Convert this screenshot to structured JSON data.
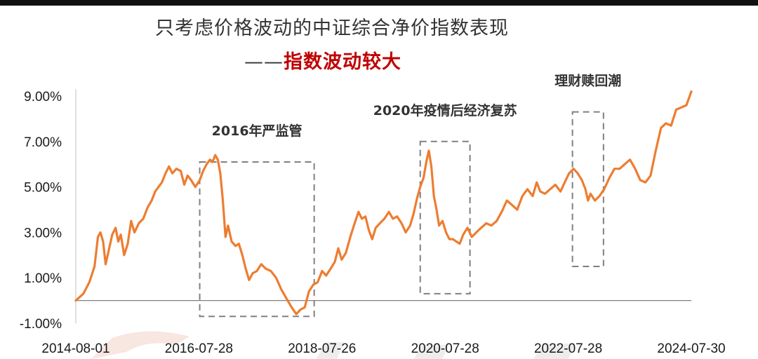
{
  "title": "只考虑价格波动的中证综合净价指数表现",
  "subtitle_dash": "——",
  "subtitle_red": "指数波动较大",
  "colors": {
    "line": "#ed7d31",
    "box": "#808080",
    "subtitle": "#c00000",
    "axis": "#808080"
  },
  "chart_data": {
    "type": "line",
    "title": "只考虑价格波动的中证综合净价指数表现",
    "subtitle": "——指数波动较大",
    "xlabel": "",
    "ylabel": "",
    "ylim": [
      -1.0,
      9.0
    ],
    "y_ticks": [
      "9.00%",
      "7.00%",
      "5.00%",
      "3.00%",
      "1.00%",
      "-1.00%"
    ],
    "y_tick_values": [
      9,
      7,
      5,
      3,
      1,
      -1
    ],
    "x_ticks": [
      "2014-08-01",
      "2016-07-28",
      "2018-07-26",
      "2020-07-28",
      "2022-07-28",
      "2024-07-30"
    ],
    "x_range": [
      "2014-08-01",
      "2024-07-30"
    ],
    "grid": false,
    "series": [
      {
        "values": [
          [
            "2014-08-01",
            0.0
          ],
          [
            "2014-09-15",
            0.3
          ],
          [
            "2014-10-20",
            0.8
          ],
          [
            "2014-11-20",
            1.5
          ],
          [
            "2014-12-10",
            2.8
          ],
          [
            "2014-12-25",
            3.0
          ],
          [
            "2015-01-10",
            2.6
          ],
          [
            "2015-01-25",
            1.6
          ],
          [
            "2015-02-15",
            2.3
          ],
          [
            "2015-03-05",
            2.9
          ],
          [
            "2015-03-25",
            3.2
          ],
          [
            "2015-04-10",
            2.6
          ],
          [
            "2015-04-25",
            2.9
          ],
          [
            "2015-05-15",
            2.0
          ],
          [
            "2015-06-05",
            2.5
          ],
          [
            "2015-06-25",
            3.5
          ],
          [
            "2015-07-15",
            3.0
          ],
          [
            "2015-08-10",
            3.4
          ],
          [
            "2015-09-05",
            3.6
          ],
          [
            "2015-10-01",
            4.1
          ],
          [
            "2015-10-25",
            4.4
          ],
          [
            "2015-11-15",
            4.8
          ],
          [
            "2015-12-05",
            5.0
          ],
          [
            "2015-12-25",
            5.2
          ],
          [
            "2016-01-15",
            5.6
          ],
          [
            "2016-02-05",
            5.9
          ],
          [
            "2016-02-25",
            5.6
          ],
          [
            "2016-03-20",
            5.8
          ],
          [
            "2016-04-15",
            5.7
          ],
          [
            "2016-05-05",
            5.1
          ],
          [
            "2016-05-25",
            5.5
          ],
          [
            "2016-06-15",
            5.3
          ],
          [
            "2016-07-10",
            5.0
          ],
          [
            "2016-08-05",
            5.3
          ],
          [
            "2016-08-25",
            5.7
          ],
          [
            "2016-09-15",
            6.0
          ],
          [
            "2016-10-05",
            6.2
          ],
          [
            "2016-10-20",
            6.1
          ],
          [
            "2016-11-05",
            6.4
          ],
          [
            "2016-11-20",
            6.2
          ],
          [
            "2016-12-05",
            5.6
          ],
          [
            "2016-12-20",
            4.4
          ],
          [
            "2017-01-05",
            2.8
          ],
          [
            "2017-01-20",
            3.3
          ],
          [
            "2017-02-10",
            2.6
          ],
          [
            "2017-03-05",
            2.4
          ],
          [
            "2017-03-25",
            2.5
          ],
          [
            "2017-04-15",
            2.0
          ],
          [
            "2017-05-05",
            1.4
          ],
          [
            "2017-05-25",
            0.9
          ],
          [
            "2017-06-15",
            1.2
          ],
          [
            "2017-07-10",
            1.3
          ],
          [
            "2017-08-05",
            1.6
          ],
          [
            "2017-09-01",
            1.4
          ],
          [
            "2017-10-01",
            1.3
          ],
          [
            "2017-11-01",
            1.0
          ],
          [
            "2017-12-01",
            0.5
          ],
          [
            "2018-01-01",
            0.1
          ],
          [
            "2018-02-01",
            -0.3
          ],
          [
            "2018-03-01",
            -0.6
          ],
          [
            "2018-03-25",
            -0.4
          ],
          [
            "2018-04-20",
            -0.3
          ],
          [
            "2018-05-15",
            0.4
          ],
          [
            "2018-06-10",
            0.7
          ],
          [
            "2018-07-05",
            0.8
          ],
          [
            "2018-08-01",
            1.3
          ],
          [
            "2018-08-25",
            1.1
          ],
          [
            "2018-09-20",
            1.4
          ],
          [
            "2018-10-15",
            1.7
          ],
          [
            "2018-11-05",
            2.3
          ],
          [
            "2018-11-25",
            1.8
          ],
          [
            "2018-12-20",
            2.1
          ],
          [
            "2019-01-15",
            2.8
          ],
          [
            "2019-02-10",
            3.4
          ],
          [
            "2019-03-05",
            3.9
          ],
          [
            "2019-03-25",
            3.6
          ],
          [
            "2019-04-15",
            3.7
          ],
          [
            "2019-05-05",
            3.1
          ],
          [
            "2019-05-25",
            2.7
          ],
          [
            "2019-06-15",
            3.2
          ],
          [
            "2019-07-10",
            3.4
          ],
          [
            "2019-08-05",
            3.6
          ],
          [
            "2019-09-01",
            3.9
          ],
          [
            "2019-09-25",
            3.6
          ],
          [
            "2019-10-20",
            3.7
          ],
          [
            "2019-11-15",
            3.4
          ],
          [
            "2019-12-10",
            3.0
          ],
          [
            "2020-01-05",
            3.3
          ],
          [
            "2020-01-25",
            3.8
          ],
          [
            "2020-02-15",
            4.5
          ],
          [
            "2020-03-05",
            5.0
          ],
          [
            "2020-03-25",
            5.4
          ],
          [
            "2020-04-10",
            6.1
          ],
          [
            "2020-04-25",
            6.6
          ],
          [
            "2020-05-10",
            5.9
          ],
          [
            "2020-05-25",
            4.6
          ],
          [
            "2020-06-10",
            4.0
          ],
          [
            "2020-06-25",
            3.3
          ],
          [
            "2020-07-15",
            3.5
          ],
          [
            "2020-08-05",
            3.0
          ],
          [
            "2020-08-25",
            2.7
          ],
          [
            "2020-09-15",
            2.7
          ],
          [
            "2020-10-05",
            2.6
          ],
          [
            "2020-10-25",
            2.5
          ],
          [
            "2020-11-15",
            2.9
          ],
          [
            "2020-12-10",
            3.2
          ],
          [
            "2021-01-05",
            2.8
          ],
          [
            "2021-02-01",
            3.0
          ],
          [
            "2021-03-01",
            3.2
          ],
          [
            "2021-04-01",
            3.4
          ],
          [
            "2021-05-01",
            3.3
          ],
          [
            "2021-06-01",
            3.5
          ],
          [
            "2021-07-01",
            3.9
          ],
          [
            "2021-08-01",
            4.4
          ],
          [
            "2021-09-01",
            4.2
          ],
          [
            "2021-10-01",
            4.0
          ],
          [
            "2021-11-01",
            4.6
          ],
          [
            "2021-12-01",
            4.9
          ],
          [
            "2022-01-01",
            4.6
          ],
          [
            "2022-01-25",
            5.2
          ],
          [
            "2022-02-15",
            4.8
          ],
          [
            "2022-03-15",
            4.7
          ],
          [
            "2022-04-15",
            4.9
          ],
          [
            "2022-05-15",
            5.1
          ],
          [
            "2022-06-15",
            4.8
          ],
          [
            "2022-07-10",
            5.2
          ],
          [
            "2022-08-05",
            5.6
          ],
          [
            "2022-09-01",
            5.8
          ],
          [
            "2022-09-25",
            5.6
          ],
          [
            "2022-10-20",
            5.3
          ],
          [
            "2022-11-10",
            4.9
          ],
          [
            "2022-11-25",
            4.4
          ],
          [
            "2022-12-10",
            4.7
          ],
          [
            "2023-01-05",
            4.4
          ],
          [
            "2023-02-01",
            4.6
          ],
          [
            "2023-03-01",
            4.9
          ],
          [
            "2023-04-01",
            5.4
          ],
          [
            "2023-05-01",
            5.8
          ],
          [
            "2023-06-01",
            5.8
          ],
          [
            "2023-07-01",
            6.0
          ],
          [
            "2023-08-01",
            6.2
          ],
          [
            "2023-09-01",
            5.8
          ],
          [
            "2023-10-01",
            5.3
          ],
          [
            "2023-11-01",
            5.2
          ],
          [
            "2023-12-01",
            5.5
          ],
          [
            "2024-01-01",
            6.6
          ],
          [
            "2024-02-01",
            7.6
          ],
          [
            "2024-03-01",
            7.8
          ],
          [
            "2024-04-01",
            7.7
          ],
          [
            "2024-05-01",
            8.4
          ],
          [
            "2024-06-01",
            8.5
          ],
          [
            "2024-07-01",
            8.6
          ],
          [
            "2024-07-30",
            9.2
          ]
        ]
      }
    ],
    "annotations": [
      {
        "text": "2016年严监管",
        "x_start": "2016-08-05",
        "x_end": "2018-06-15",
        "y_low": -0.7,
        "y_high": 6.1
      },
      {
        "text": "2020年疫情后经济复苏",
        "x_start": "2020-03-05",
        "x_end": "2020-12-25",
        "y_low": 0.3,
        "y_high": 7.0
      },
      {
        "text": "理财赎回潮",
        "x_start": "2022-08-25",
        "x_end": "2023-02-25",
        "y_low": 1.5,
        "y_high": 8.3
      }
    ]
  }
}
